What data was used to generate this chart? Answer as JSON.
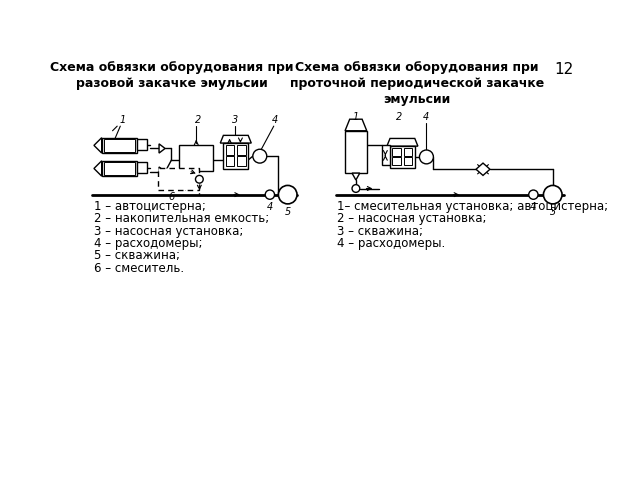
{
  "title_left": "Схема обвязки оборудования при\nразовой закачке эмульсии",
  "title_right": "Схема обвязки оборудования при\nпроточной периодической закачке\nэмульсии",
  "page_num": "12",
  "legend_left": [
    "1 – автоцистерна;",
    "2 – накопительная емкость;",
    "3 – насосная установка;",
    "4 – расходомеры;",
    "5 – скважина;",
    "6 – смеситель."
  ],
  "legend_right": [
    "1– смесительная установка; автоцистерна;",
    "2 – насосная установка;",
    "3 – скважина;",
    "4 – расходомеры."
  ],
  "bg_color": "#ffffff"
}
